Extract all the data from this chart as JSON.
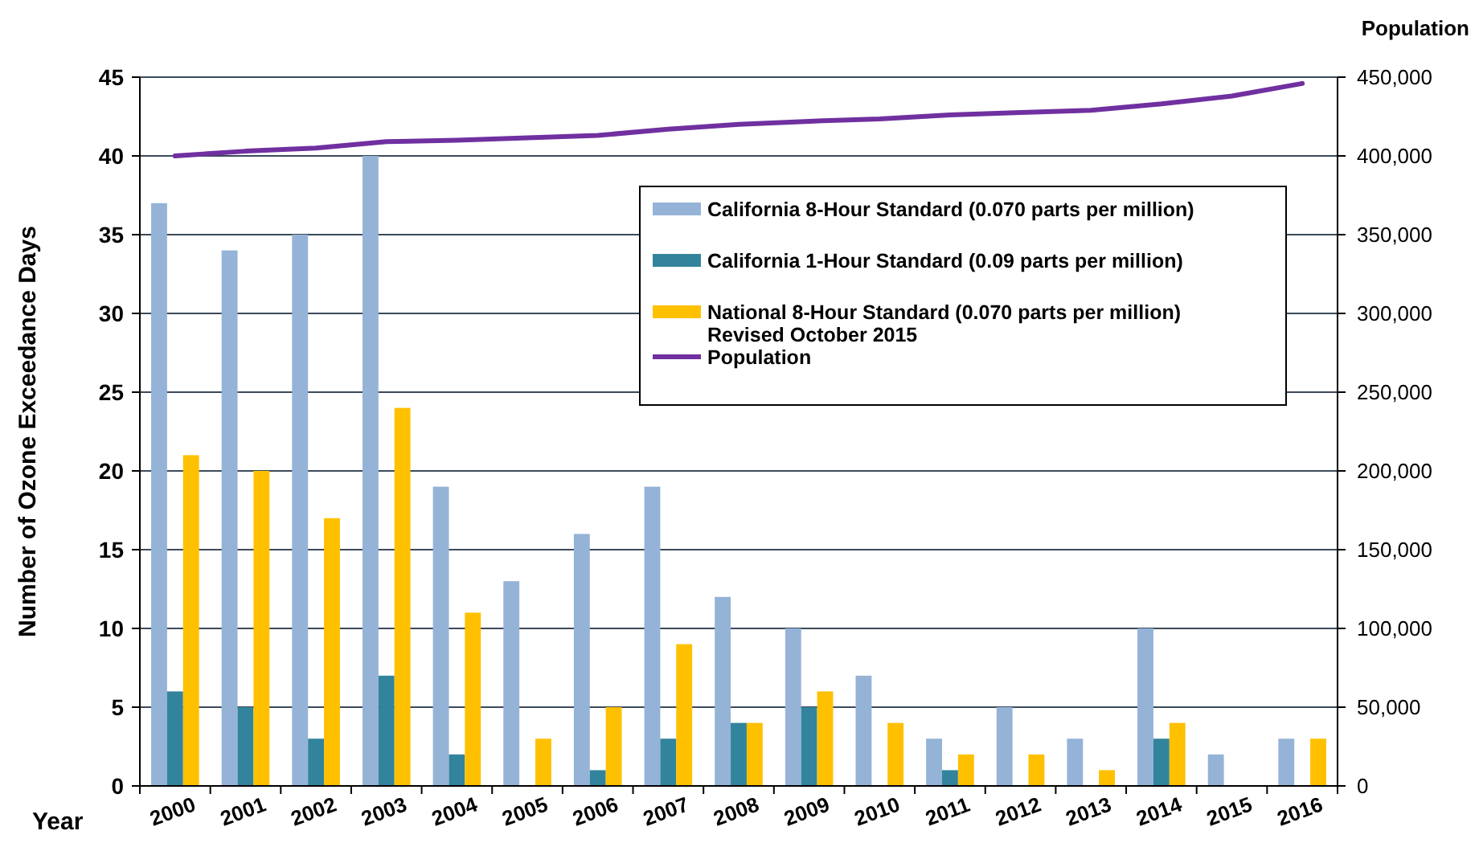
{
  "chart_data": {
    "type": "bar",
    "xlabel": "Year",
    "ylabel": "Number of Ozone Exceedance Days",
    "y2label": "Population",
    "categories": [
      "2000",
      "2001",
      "2002",
      "2003",
      "2004",
      "2005",
      "2006",
      "2007",
      "2008",
      "2009",
      "2010",
      "2011",
      "2012",
      "2013",
      "2014",
      "2015",
      "2016"
    ],
    "series": [
      {
        "name": "California 8-Hour Standard (0.070 parts per million)",
        "color": "#95b3d7",
        "values": [
          37,
          34,
          35,
          40,
          19,
          13,
          16,
          19,
          12,
          10,
          7,
          3,
          5,
          3,
          10,
          2,
          3
        ]
      },
      {
        "name": "California 1-Hour Standard (0.09 parts per million)",
        "color": "#31849b",
        "values": [
          6,
          5,
          3,
          7,
          2,
          0,
          1,
          3,
          4,
          5,
          0,
          1,
          0,
          0,
          3,
          0,
          0
        ]
      },
      {
        "name": "National 8-Hour Standard (0.070 parts per million)\nRevised October 2015",
        "color": "#ffc000",
        "values": [
          21,
          20,
          17,
          24,
          11,
          3,
          5,
          9,
          4,
          6,
          4,
          2,
          2,
          1,
          4,
          0,
          3
        ]
      },
      {
        "name": "Population",
        "type": "line",
        "axis": "y2",
        "color": "#7030a0",
        "values": [
          400000,
          403000,
          405000,
          409000,
          410000,
          411500,
          413000,
          417000,
          420000,
          422000,
          423500,
          426000,
          427500,
          429000,
          433000,
          438000,
          446000
        ]
      }
    ],
    "ylim": [
      0,
      45
    ],
    "yticks": [
      0,
      5,
      10,
      15,
      20,
      25,
      30,
      35,
      40,
      45
    ],
    "y2lim": [
      0,
      450000
    ],
    "y2ticks": [
      {
        "value": 0,
        "label": "0"
      },
      {
        "value": 50000,
        "label": "50,000"
      },
      {
        "value": 100000,
        "label": "100,000"
      },
      {
        "value": 150000,
        "label": "150,000"
      },
      {
        "value": 200000,
        "label": "200,000"
      },
      {
        "value": 250000,
        "label": "250,000"
      },
      {
        "value": 300000,
        "label": "300,000"
      },
      {
        "value": 350000,
        "label": "350,000"
      },
      {
        "value": 400000,
        "label": "400,000"
      },
      {
        "value": 450000,
        "label": "450,000"
      }
    ],
    "grid": "y",
    "legend": "top right"
  }
}
